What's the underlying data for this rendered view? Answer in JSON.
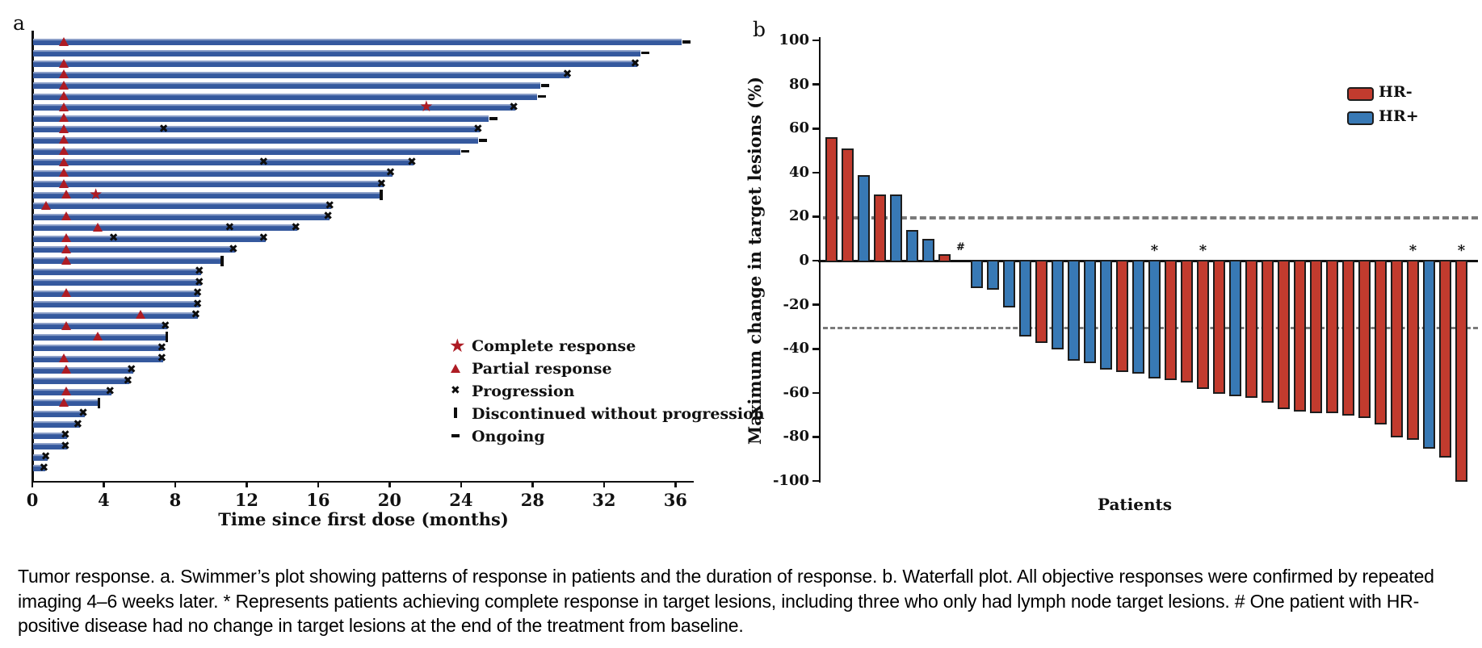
{
  "panel_a": {
    "letter": "a",
    "xlabel": "Time since first dose (months)"
  },
  "panel_b": {
    "letter": "b",
    "ylabel": "Maximum change in target lesions (%)",
    "xlabel": "Patients"
  },
  "colors": {
    "swimmer_bar": "#35599e",
    "response_marker_red": "#ae1c24",
    "black_marker": "#0d0d0d",
    "hr_negative_red": "#c23b2e",
    "hr_positive_blue": "#3879b5",
    "reference_dash_gray": "#7a7a7a"
  },
  "chart_data": [
    {
      "type": "bar",
      "variant": "swimmer",
      "panel": "a",
      "orientation": "horizontal",
      "xlabel": "Time since first dose (months)",
      "x_ticks": [
        0,
        4,
        8,
        12,
        16,
        20,
        24,
        28,
        32,
        36
      ],
      "xlim": [
        0,
        37
      ],
      "grid": false,
      "legend_position": "center-right",
      "legend": [
        {
          "symbol": "star",
          "label": "Complete response",
          "color": "#ae1c24"
        },
        {
          "symbol": "triangle",
          "label": "Partial response",
          "color": "#ae1c24"
        },
        {
          "symbol": "x",
          "label": "Progression",
          "color": "#0d0d0d"
        },
        {
          "symbol": "vbar",
          "label": "Discontinued without progression",
          "color": "#0d0d0d"
        },
        {
          "symbol": "dash",
          "label": "Ongoing",
          "color": "#0d0d0d"
        }
      ],
      "patients": [
        {
          "months": 36.3,
          "pr": 1.8,
          "end": "ongoing"
        },
        {
          "months": 34.0,
          "end": "ongoing"
        },
        {
          "months": 33.8,
          "pr": 1.8,
          "end": "progression"
        },
        {
          "months": 30.0,
          "pr": 1.8,
          "end": "progression"
        },
        {
          "months": 28.4,
          "pr": 1.8,
          "end": "ongoing"
        },
        {
          "months": 28.2,
          "pr": 1.8,
          "end": "ongoing"
        },
        {
          "months": 27.0,
          "pr": 1.8,
          "cr": 22.1,
          "end": "progression"
        },
        {
          "months": 25.5,
          "pr": 1.8,
          "end": "ongoing"
        },
        {
          "months": 25.0,
          "pr": 1.8,
          "x": [
            7.4
          ],
          "end": "progression"
        },
        {
          "months": 24.9,
          "pr": 1.8,
          "end": "ongoing"
        },
        {
          "months": 23.9,
          "pr": 1.8,
          "end": "ongoing"
        },
        {
          "months": 21.3,
          "pr": 1.8,
          "x": [
            13.0
          ],
          "end": "progression"
        },
        {
          "months": 20.1,
          "pr": 1.8,
          "end": "progression"
        },
        {
          "months": 19.6,
          "pr": 1.8,
          "end": "progression"
        },
        {
          "months": 19.4,
          "pr": 1.9,
          "cr": 3.6,
          "end": "discontinued"
        },
        {
          "months": 16.7,
          "pr": 0.8,
          "end": "progression"
        },
        {
          "months": 16.6,
          "pr": 1.9,
          "end": "progression"
        },
        {
          "months": 14.8,
          "pr": 3.7,
          "x": [
            11.1
          ],
          "end": "progression"
        },
        {
          "months": 13.0,
          "pr": 1.9,
          "x": [
            4.6
          ],
          "end": "progression"
        },
        {
          "months": 11.3,
          "pr": 1.9,
          "end": "progression"
        },
        {
          "months": 10.5,
          "pr": 1.9,
          "end": "discontinued"
        },
        {
          "months": 9.4,
          "end": "progression"
        },
        {
          "months": 9.4,
          "end": "progression"
        },
        {
          "months": 9.3,
          "pr": 1.9,
          "end": "progression"
        },
        {
          "months": 9.3,
          "end": "progression"
        },
        {
          "months": 9.2,
          "pr": 6.1,
          "end": "progression"
        },
        {
          "months": 7.5,
          "pr": 1.9,
          "end": "progression"
        },
        {
          "months": 7.4,
          "pr": 3.7,
          "end": "discontinued"
        },
        {
          "months": 7.3,
          "end": "progression"
        },
        {
          "months": 7.3,
          "pr": 1.8,
          "end": "progression"
        },
        {
          "months": 5.6,
          "pr": 1.9,
          "end": "progression"
        },
        {
          "months": 5.4,
          "end": "progression"
        },
        {
          "months": 4.4,
          "pr": 1.9,
          "end": "progression"
        },
        {
          "months": 3.6,
          "pr": 1.8,
          "end": "discontinued"
        },
        {
          "months": 2.9,
          "end": "progression"
        },
        {
          "months": 2.6,
          "end": "progression"
        },
        {
          "months": 1.9,
          "end": "progression"
        },
        {
          "months": 1.9,
          "end": "progression"
        },
        {
          "months": 0.8,
          "end": "progression"
        },
        {
          "months": 0.7,
          "end": "progression"
        }
      ]
    },
    {
      "type": "bar",
      "variant": "waterfall",
      "panel": "b",
      "ylabel": "Maximum change in target lesions (%)",
      "xlabel": "Patients",
      "ylim": [
        -100,
        100
      ],
      "y_ticks": [
        100,
        80,
        60,
        40,
        20,
        0,
        -20,
        -40,
        -60,
        -80,
        -100
      ],
      "reference_lines": [
        20,
        -30
      ],
      "grid": false,
      "legend_position": "top-right",
      "legend": [
        {
          "label": "HR-",
          "color": "#c23b2e"
        },
        {
          "label": "HR+",
          "color": "#3879b5"
        }
      ],
      "bars": [
        {
          "value": 56,
          "group": "HR-"
        },
        {
          "value": 51,
          "group": "HR-"
        },
        {
          "value": 39,
          "group": "HR+"
        },
        {
          "value": 30,
          "group": "HR-"
        },
        {
          "value": 30,
          "group": "HR+"
        },
        {
          "value": 14,
          "group": "HR+"
        },
        {
          "value": 10,
          "group": "HR+"
        },
        {
          "value": 3,
          "group": "HR-"
        },
        {
          "value": 0,
          "group": "HR+",
          "annotation": "#"
        },
        {
          "value": -12,
          "group": "HR+"
        },
        {
          "value": -13,
          "group": "HR+"
        },
        {
          "value": -21,
          "group": "HR+"
        },
        {
          "value": -34,
          "group": "HR+"
        },
        {
          "value": -37,
          "group": "HR-"
        },
        {
          "value": -40,
          "group": "HR+"
        },
        {
          "value": -45,
          "group": "HR+"
        },
        {
          "value": -46,
          "group": "HR+"
        },
        {
          "value": -49,
          "group": "HR+"
        },
        {
          "value": -50,
          "group": "HR-"
        },
        {
          "value": -51,
          "group": "HR+"
        },
        {
          "value": -53,
          "group": "HR+",
          "annotation": "*"
        },
        {
          "value": -54,
          "group": "HR-"
        },
        {
          "value": -55,
          "group": "HR-"
        },
        {
          "value": -58,
          "group": "HR-",
          "annotation": "*"
        },
        {
          "value": -60,
          "group": "HR-"
        },
        {
          "value": -61,
          "group": "HR+"
        },
        {
          "value": -62,
          "group": "HR-"
        },
        {
          "value": -64,
          "group": "HR-"
        },
        {
          "value": -67,
          "group": "HR-"
        },
        {
          "value": -68,
          "group": "HR-"
        },
        {
          "value": -69,
          "group": "HR-"
        },
        {
          "value": -69,
          "group": "HR-"
        },
        {
          "value": -70,
          "group": "HR-"
        },
        {
          "value": -71,
          "group": "HR-"
        },
        {
          "value": -74,
          "group": "HR-"
        },
        {
          "value": -80,
          "group": "HR-"
        },
        {
          "value": -81,
          "group": "HR-",
          "annotation": "*"
        },
        {
          "value": -85,
          "group": "HR+"
        },
        {
          "value": -89,
          "group": "HR-"
        },
        {
          "value": -100,
          "group": "HR-",
          "annotation": "*"
        }
      ]
    }
  ],
  "caption": {
    "text": "Tumor response. a. Swimmer’s plot showing patterns of response in patients and the duration of response. b. Waterfall plot. All objective responses were confirmed by repeated imaging 4–6 weeks later. * Represents patients achieving complete response in target lesions, including three who only had lymph node target lesions. # One patient with HR-positive disease had no change in target lesions at the end of the treatment from baseline."
  }
}
